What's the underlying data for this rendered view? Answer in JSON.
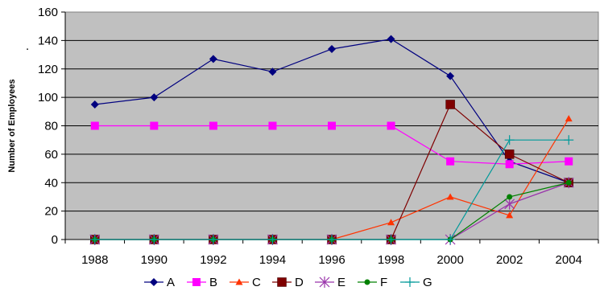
{
  "chart_data": {
    "type": "line",
    "title": "",
    "xlabel": "",
    "ylabel": "Number of Employees",
    "stray_mark": ".",
    "categories": [
      "1988",
      "1990",
      "1992",
      "1994",
      "1996",
      "1998",
      "2000",
      "2002",
      "2004"
    ],
    "ylim": [
      0,
      160
    ],
    "yticks": [
      0,
      20,
      40,
      60,
      80,
      100,
      120,
      140,
      160
    ],
    "grid": true,
    "plot_background": "#c0c0c0",
    "legend_position": "bottom",
    "series": [
      {
        "name": "A",
        "color": "#00007f",
        "marker": "diamond",
        "values": [
          95,
          100,
          127,
          118,
          134,
          141,
          115,
          55,
          40
        ]
      },
      {
        "name": "B",
        "color": "#ff00ff",
        "marker": "square",
        "values": [
          80,
          80,
          80,
          80,
          80,
          80,
          55,
          53,
          55
        ]
      },
      {
        "name": "C",
        "color": "#ff3300",
        "marker": "triangle",
        "values": [
          0,
          0,
          0,
          0,
          0,
          12,
          30,
          17,
          85
        ]
      },
      {
        "name": "D",
        "color": "#7f0000",
        "marker": "square-large",
        "values": [
          0,
          0,
          0,
          0,
          0,
          0,
          95,
          60,
          40
        ]
      },
      {
        "name": "E",
        "color": "#9933aa",
        "marker": "asterisk",
        "values": [
          0,
          0,
          0,
          0,
          0,
          0,
          0,
          25,
          40
        ]
      },
      {
        "name": "F",
        "color": "#008000",
        "marker": "circle",
        "values": [
          0,
          0,
          0,
          0,
          0,
          0,
          0,
          30,
          40
        ]
      },
      {
        "name": "G",
        "color": "#009999",
        "marker": "plus",
        "values": [
          0,
          0,
          0,
          0,
          0,
          0,
          0,
          70,
          70
        ]
      }
    ]
  }
}
